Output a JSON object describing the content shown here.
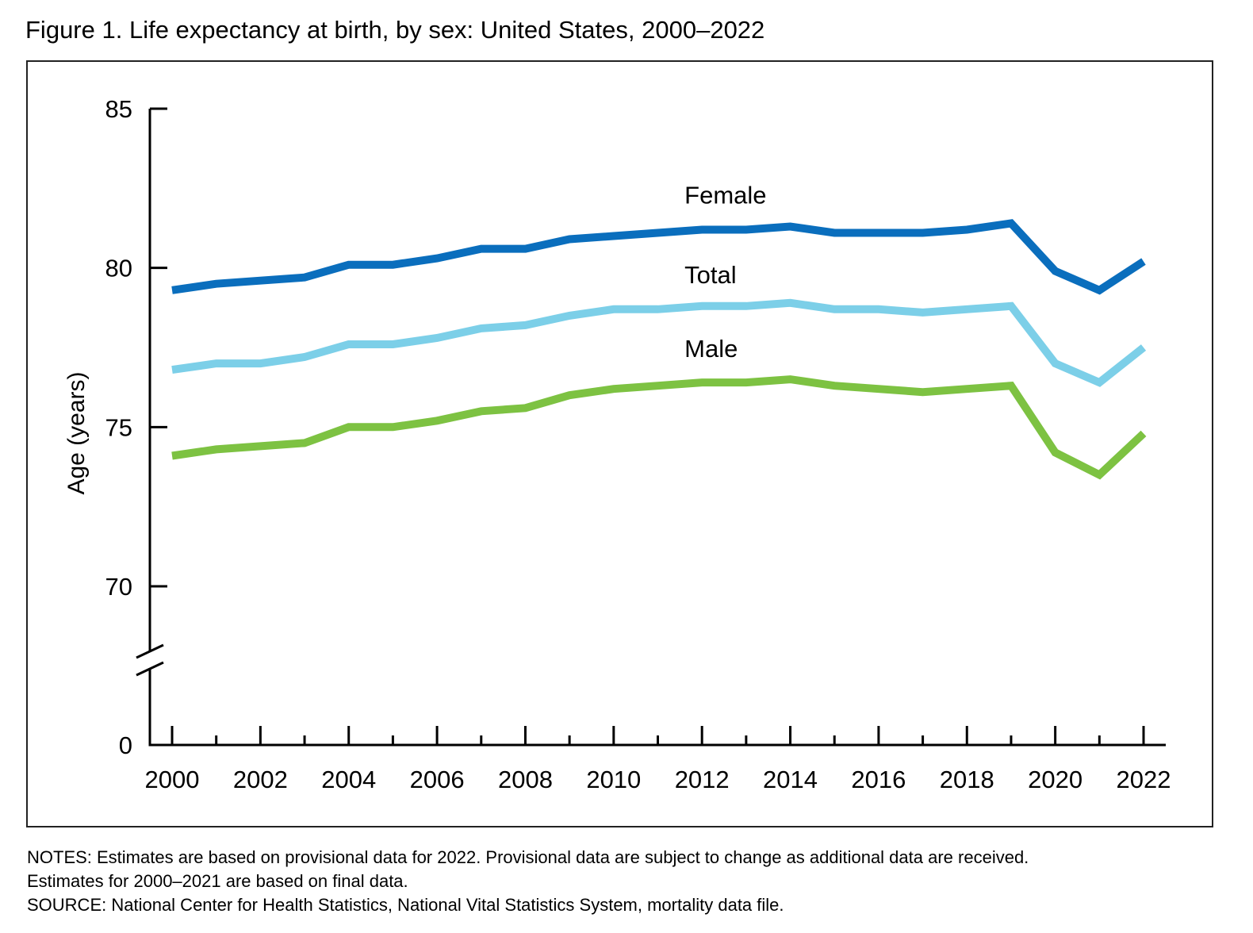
{
  "figure": {
    "title": "Figure 1. Life expectancy at birth, by sex: United States, 2000–2022"
  },
  "notes": {
    "line1": "NOTES: Estimates are based on provisional data for 2022. Provisional data are subject to change as additional data are received.",
    "line2": "Estimates for 2000–2021 are based on final data.",
    "line3": "SOURCE: National Center for Health Statistics, National Vital Statistics System, mortality data file."
  },
  "chart_data": {
    "type": "line",
    "title": "Figure 1. Life expectancy at birth, by sex: United States, 2000–2022",
    "xlabel": "",
    "ylabel": "Age (years)",
    "x": [
      2000,
      2001,
      2002,
      2003,
      2004,
      2005,
      2006,
      2007,
      2008,
      2009,
      2010,
      2011,
      2012,
      2013,
      2014,
      2015,
      2016,
      2017,
      2018,
      2019,
      2020,
      2021,
      2022
    ],
    "x_tick_labels": [
      "2000",
      "2002",
      "2004",
      "2006",
      "2008",
      "2010",
      "2012",
      "2014",
      "2016",
      "2018",
      "2020",
      "2022"
    ],
    "y_ticks": [
      0,
      70,
      75,
      80,
      85
    ],
    "y_tick_labels": [
      "0",
      "70",
      "75",
      "80",
      "85"
    ],
    "ylim": [
      0,
      85
    ],
    "y_axis_break": [
      0,
      70
    ],
    "grid": false,
    "legend": "direct labels on lines",
    "series": [
      {
        "name": "Female",
        "color": "#0a6ebd",
        "values": [
          79.3,
          79.5,
          79.6,
          79.7,
          80.1,
          80.1,
          80.3,
          80.6,
          80.6,
          80.9,
          81.0,
          81.1,
          81.2,
          81.2,
          81.3,
          81.1,
          81.1,
          81.1,
          81.2,
          81.4,
          79.9,
          79.3,
          80.2
        ]
      },
      {
        "name": "Total",
        "color": "#7ccfe8",
        "values": [
          76.8,
          77.0,
          77.0,
          77.2,
          77.6,
          77.6,
          77.8,
          78.1,
          78.2,
          78.5,
          78.7,
          78.7,
          78.8,
          78.8,
          78.9,
          78.7,
          78.7,
          78.6,
          78.7,
          78.8,
          77.0,
          76.4,
          77.5
        ]
      },
      {
        "name": "Male",
        "color": "#7dc242",
        "values": [
          74.1,
          74.3,
          74.4,
          74.5,
          75.0,
          75.0,
          75.2,
          75.5,
          75.6,
          76.0,
          76.2,
          76.3,
          76.4,
          76.4,
          76.5,
          76.3,
          76.2,
          76.1,
          76.2,
          76.3,
          74.2,
          73.5,
          74.8
        ]
      }
    ]
  }
}
